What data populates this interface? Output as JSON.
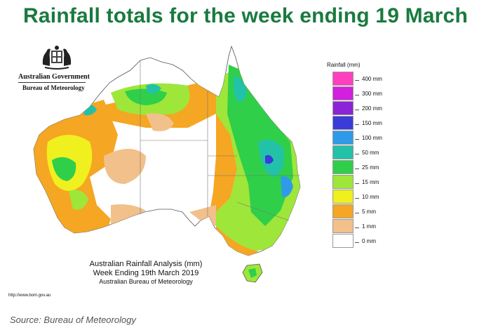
{
  "headline": "Rainfall totals for the week ending 19 March",
  "logo": {
    "line1": "Australian Government",
    "line2": "Bureau of Meteorology"
  },
  "analysis": {
    "line1": "Australian Rainfall Analysis (mm)",
    "line2": "Week Ending 19th March 2019",
    "line3": "Australian Bureau of Meteorology"
  },
  "url": "http://www.bom.gov.au",
  "legend": {
    "title": "Rainfall (mm)",
    "bands": [
      {
        "label": "400 mm",
        "color": "#ff3fbf"
      },
      {
        "label": "300 mm",
        "color": "#d21fe0"
      },
      {
        "label": "200 mm",
        "color": "#8a24d6"
      },
      {
        "label": "150 mm",
        "color": "#3b3bd9"
      },
      {
        "label": "100 mm",
        "color": "#2f9be8"
      },
      {
        "label": "50 mm",
        "color": "#22c2a8"
      },
      {
        "label": "25 mm",
        "color": "#2fcf4a"
      },
      {
        "label": "15 mm",
        "color": "#9ee63a"
      },
      {
        "label": "10 mm",
        "color": "#f0f01e"
      },
      {
        "label": "5 mm",
        "color": "#f5a623"
      },
      {
        "label": "1 mm",
        "color": "#f2c08a"
      },
      {
        "label": "0 mm",
        "color": "#ffffff"
      }
    ]
  },
  "source": "Source: Bureau of Meteorology"
}
